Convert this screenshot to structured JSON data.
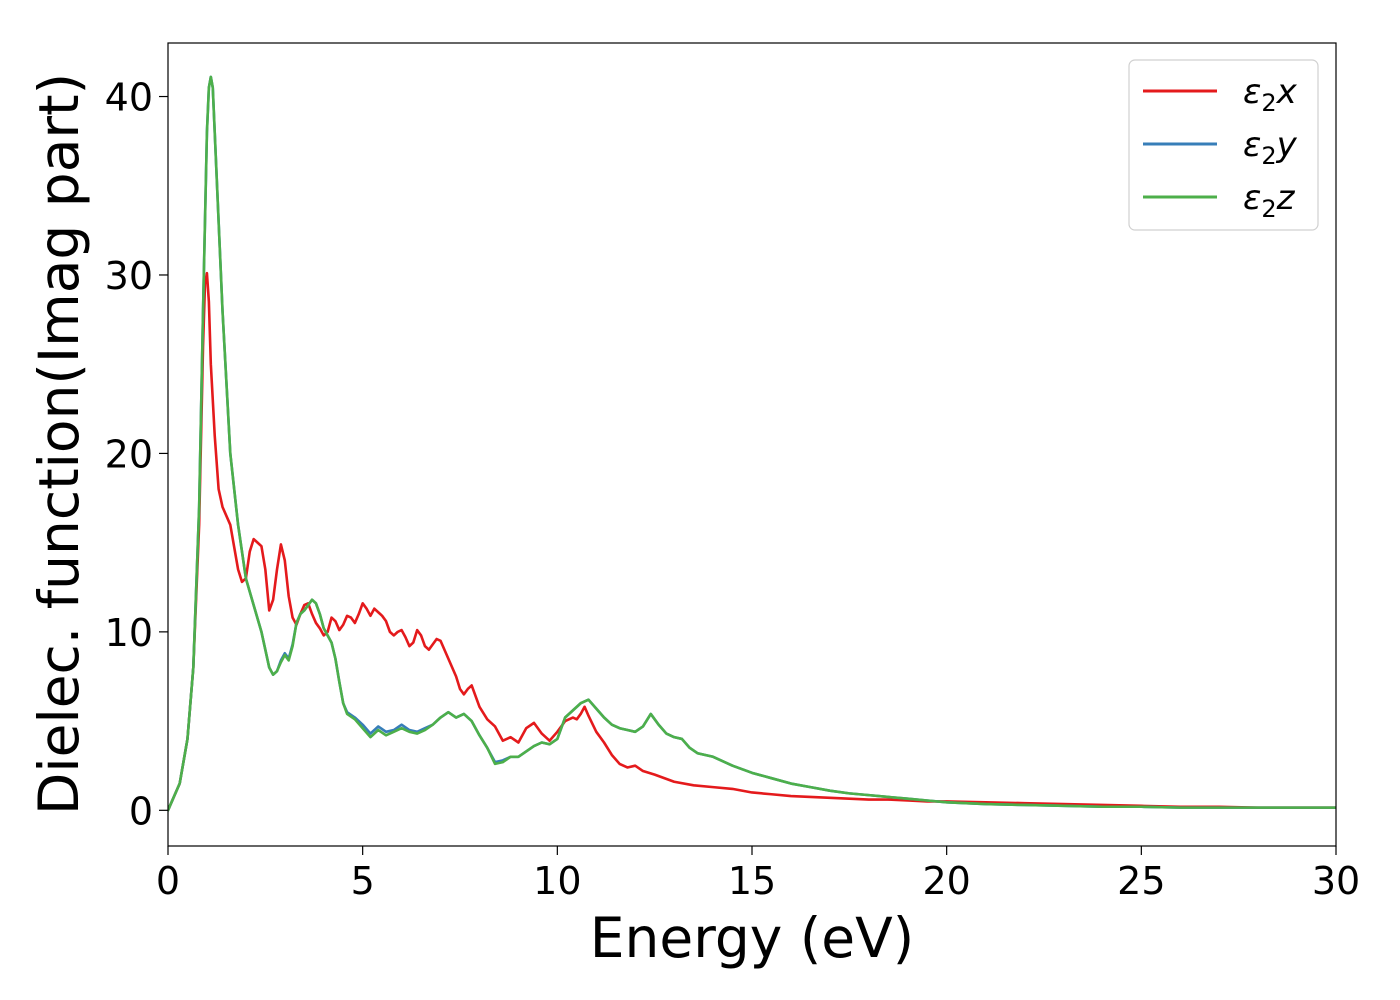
{
  "chart_data": {
    "type": "line",
    "xlabel": "Energy (eV)",
    "ylabel": "Dielec. function(Imag part)",
    "xlim": [
      0,
      30
    ],
    "ylim": [
      -2,
      43
    ],
    "xticks": [
      0,
      5,
      10,
      15,
      20,
      25,
      30
    ],
    "yticks": [
      0,
      10,
      20,
      30,
      40
    ],
    "grid": false,
    "legend_position": "top-right",
    "series": [
      {
        "name": "ε₂x",
        "legend": {
          "base": "ε",
          "sub": "2",
          "suffix": "x"
        },
        "color": "#e41a1c",
        "x": [
          0,
          0.3,
          0.5,
          0.65,
          0.8,
          0.9,
          0.95,
          1.0,
          1.05,
          1.1,
          1.2,
          1.3,
          1.4,
          1.6,
          1.8,
          1.9,
          2.0,
          2.1,
          2.2,
          2.3,
          2.4,
          2.5,
          2.6,
          2.7,
          2.8,
          2.9,
          3.0,
          3.1,
          3.2,
          3.3,
          3.4,
          3.5,
          3.6,
          3.7,
          3.8,
          3.9,
          4.0,
          4.1,
          4.2,
          4.3,
          4.4,
          4.5,
          4.6,
          4.7,
          4.8,
          4.9,
          5.0,
          5.1,
          5.2,
          5.3,
          5.4,
          5.5,
          5.6,
          5.7,
          5.8,
          5.9,
          6.0,
          6.1,
          6.2,
          6.3,
          6.4,
          6.5,
          6.6,
          6.7,
          6.8,
          6.9,
          7.0,
          7.2,
          7.4,
          7.5,
          7.6,
          7.7,
          7.8,
          8.0,
          8.2,
          8.4,
          8.6,
          8.8,
          9.0,
          9.2,
          9.4,
          9.6,
          9.8,
          10.0,
          10.2,
          10.4,
          10.5,
          10.6,
          10.7,
          10.8,
          11.0,
          11.2,
          11.4,
          11.6,
          11.8,
          12.0,
          12.2,
          12.5,
          13.0,
          13.5,
          14.0,
          14.5,
          15.0,
          15.5,
          16.0,
          16.5,
          17.0,
          17.5,
          18.0,
          18.5,
          19.0,
          19.5,
          20.0,
          21.0,
          22.0,
          23.0,
          24.0,
          25.0,
          26.0,
          27.0,
          28.0,
          29.0,
          30.0
        ],
        "y": [
          0,
          1.5,
          4,
          8,
          16,
          26,
          29.5,
          30.1,
          28.5,
          25,
          21,
          18,
          17,
          16,
          13.5,
          12.8,
          13,
          14.5,
          15.2,
          15,
          14.8,
          13.5,
          11.2,
          11.8,
          13.5,
          14.9,
          14,
          12,
          10.8,
          10.4,
          11,
          11.5,
          11.6,
          11,
          10.5,
          10.2,
          9.8,
          10,
          10.8,
          10.6,
          10.1,
          10.4,
          10.9,
          10.8,
          10.5,
          11,
          11.6,
          11.3,
          10.9,
          11.3,
          11.1,
          10.9,
          10.6,
          10,
          9.8,
          10,
          10.1,
          9.7,
          9.2,
          9.4,
          10.1,
          9.8,
          9.2,
          9,
          9.3,
          9.6,
          9.5,
          8.5,
          7.5,
          6.8,
          6.5,
          6.8,
          7,
          5.8,
          5.1,
          4.7,
          3.9,
          4.1,
          3.8,
          4.6,
          4.9,
          4.3,
          3.9,
          4.4,
          5,
          5.2,
          5.1,
          5.4,
          5.8,
          5.3,
          4.4,
          3.8,
          3.1,
          2.6,
          2.4,
          2.5,
          2.2,
          2.0,
          1.6,
          1.4,
          1.3,
          1.2,
          1.0,
          0.9,
          0.8,
          0.75,
          0.7,
          0.65,
          0.6,
          0.6,
          0.55,
          0.5,
          0.5,
          0.45,
          0.4,
          0.35,
          0.3,
          0.25,
          0.2,
          0.2,
          0.15,
          0.15,
          0.15
        ]
      },
      {
        "name": "ε₂y",
        "legend": {
          "base": "ε",
          "sub": "2",
          "suffix": "y"
        },
        "color": "#377eb8",
        "x": [
          0,
          0.3,
          0.5,
          0.65,
          0.8,
          0.9,
          1.0,
          1.05,
          1.1,
          1.15,
          1.2,
          1.3,
          1.4,
          1.5,
          1.6,
          1.8,
          2.0,
          2.2,
          2.4,
          2.6,
          2.7,
          2.8,
          2.9,
          3.0,
          3.1,
          3.2,
          3.3,
          3.4,
          3.5,
          3.6,
          3.7,
          3.8,
          3.9,
          4.0,
          4.1,
          4.2,
          4.3,
          4.4,
          4.5,
          4.6,
          4.8,
          5.0,
          5.2,
          5.4,
          5.6,
          5.8,
          6.0,
          6.2,
          6.4,
          6.6,
          6.8,
          7.0,
          7.2,
          7.4,
          7.6,
          7.8,
          8.0,
          8.2,
          8.4,
          8.6,
          8.8,
          9.0,
          9.2,
          9.4,
          9.6,
          9.8,
          10.0,
          10.2,
          10.4,
          10.6,
          10.8,
          11.0,
          11.2,
          11.4,
          11.6,
          11.8,
          12.0,
          12.2,
          12.4,
          12.6,
          12.8,
          13.0,
          13.2,
          13.4,
          13.6,
          13.8,
          14.0,
          14.5,
          15.0,
          15.5,
          16.0,
          16.5,
          17.0,
          17.5,
          18.0,
          18.5,
          19.0,
          19.5,
          20.0,
          21.0,
          22.0,
          23.0,
          24.0,
          25.0,
          26.0,
          27.0,
          28.0,
          29.0,
          30.0
        ],
        "y": [
          0,
          1.5,
          4,
          8,
          17,
          28,
          38,
          40.5,
          41.1,
          40.5,
          38,
          33,
          28,
          24,
          20,
          16,
          13,
          11.5,
          10,
          8,
          7.6,
          7.8,
          8.4,
          8.8,
          8.5,
          9.3,
          10.5,
          11,
          11.2,
          11.5,
          11.8,
          11.6,
          11,
          10.2,
          9.8,
          9.4,
          8.5,
          7.2,
          6,
          5.5,
          5.2,
          4.8,
          4.3,
          4.7,
          4.4,
          4.5,
          4.8,
          4.5,
          4.4,
          4.6,
          4.8,
          5.2,
          5.5,
          5.2,
          5.4,
          5,
          4.2,
          3.5,
          2.7,
          2.8,
          3,
          3,
          3.3,
          3.6,
          3.8,
          3.7,
          4,
          5.2,
          5.6,
          6,
          6.2,
          5.7,
          5.2,
          4.8,
          4.6,
          4.5,
          4.4,
          4.7,
          5.4,
          4.8,
          4.3,
          4.1,
          4.0,
          3.5,
          3.2,
          3.1,
          3.0,
          2.5,
          2.1,
          1.8,
          1.5,
          1.3,
          1.1,
          0.95,
          0.85,
          0.75,
          0.65,
          0.55,
          0.45,
          0.35,
          0.3,
          0.25,
          0.2,
          0.2,
          0.15,
          0.15,
          0.15,
          0.15,
          0.15
        ]
      },
      {
        "name": "ε₂z",
        "legend": {
          "base": "ε",
          "sub": "2",
          "suffix": "z"
        },
        "color": "#4daf4a",
        "x": [
          0,
          0.3,
          0.5,
          0.65,
          0.8,
          0.9,
          1.0,
          1.05,
          1.1,
          1.15,
          1.2,
          1.3,
          1.4,
          1.5,
          1.6,
          1.8,
          2.0,
          2.2,
          2.4,
          2.6,
          2.7,
          2.8,
          2.9,
          3.0,
          3.1,
          3.2,
          3.3,
          3.4,
          3.5,
          3.6,
          3.7,
          3.8,
          3.9,
          4.0,
          4.1,
          4.2,
          4.3,
          4.4,
          4.5,
          4.6,
          4.8,
          5.0,
          5.2,
          5.4,
          5.6,
          5.8,
          6.0,
          6.2,
          6.4,
          6.6,
          6.8,
          7.0,
          7.2,
          7.4,
          7.6,
          7.8,
          8.0,
          8.2,
          8.4,
          8.6,
          8.8,
          9.0,
          9.2,
          9.4,
          9.6,
          9.8,
          10.0,
          10.2,
          10.4,
          10.6,
          10.8,
          11.0,
          11.2,
          11.4,
          11.6,
          11.8,
          12.0,
          12.2,
          12.4,
          12.6,
          12.8,
          13.0,
          13.2,
          13.4,
          13.6,
          13.8,
          14.0,
          14.5,
          15.0,
          15.5,
          16.0,
          16.5,
          17.0,
          17.5,
          18.0,
          18.5,
          19.0,
          19.5,
          20.0,
          21.0,
          22.0,
          23.0,
          24.0,
          25.0,
          26.0,
          27.0,
          28.0,
          29.0,
          30.0
        ],
        "y": [
          0,
          1.5,
          4,
          8,
          17,
          28,
          38,
          40.5,
          41.1,
          40.5,
          38,
          33,
          28,
          24,
          20,
          16,
          13,
          11.5,
          10,
          8,
          7.6,
          7.8,
          8.3,
          8.7,
          8.4,
          9.2,
          10.5,
          11,
          11.2,
          11.5,
          11.8,
          11.6,
          11,
          10.2,
          9.8,
          9.4,
          8.5,
          7.2,
          6,
          5.4,
          5.1,
          4.6,
          4.1,
          4.5,
          4.2,
          4.4,
          4.6,
          4.4,
          4.3,
          4.5,
          4.8,
          5.2,
          5.5,
          5.2,
          5.4,
          5,
          4.2,
          3.5,
          2.6,
          2.7,
          3,
          3,
          3.3,
          3.6,
          3.8,
          3.7,
          4,
          5.2,
          5.6,
          6,
          6.2,
          5.7,
          5.2,
          4.8,
          4.6,
          4.5,
          4.4,
          4.7,
          5.4,
          4.8,
          4.3,
          4.1,
          4.0,
          3.5,
          3.2,
          3.1,
          3.0,
          2.5,
          2.1,
          1.8,
          1.5,
          1.3,
          1.1,
          0.95,
          0.85,
          0.75,
          0.65,
          0.55,
          0.45,
          0.35,
          0.3,
          0.25,
          0.2,
          0.2,
          0.15,
          0.15,
          0.15,
          0.15,
          0.15
        ]
      }
    ]
  }
}
